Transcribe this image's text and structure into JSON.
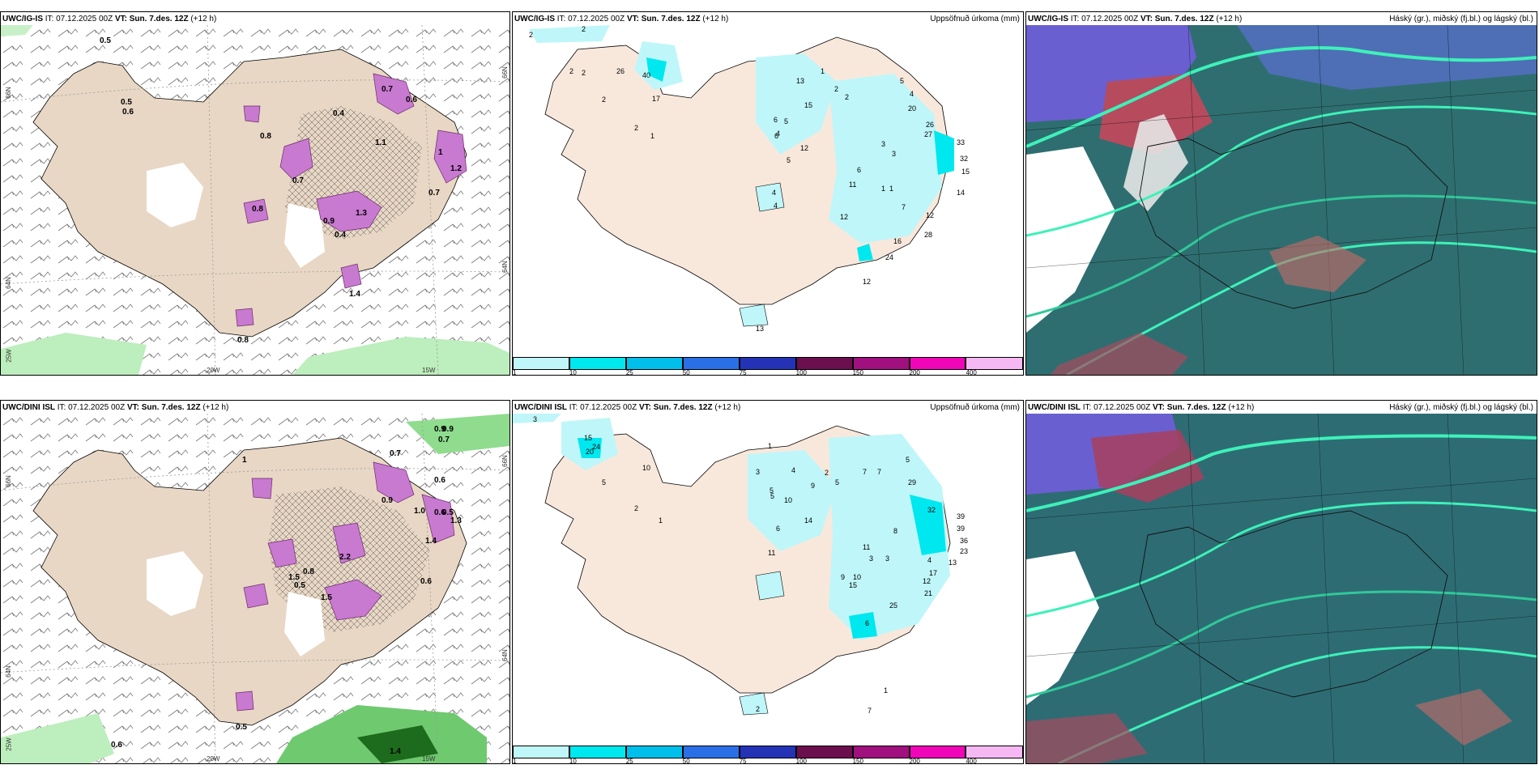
{
  "rows": [
    {
      "model": "UWC/IG-IS",
      "it_label": "IT:",
      "it_value": "07.12.2025 00Z",
      "vt_label": "VT:",
      "vt_value": "Sun. 7.des. 12Z",
      "lead": "(+12 h)",
      "panel1": {
        "lat_labels": [
          "66N",
          "64N",
          "25W"
        ],
        "lon_labels": [
          "20W",
          "15W"
        ],
        "right_lat_labels": [
          "66N",
          "64N"
        ],
        "values": [
          "0.5",
          "0.5",
          "0.6",
          "0.4",
          "0.7",
          "0.6",
          "1",
          "1.2",
          "0.8",
          "0.9",
          "1.3",
          "0.4",
          "0.8",
          "0.7",
          "1.1",
          "1.4",
          "0.7",
          "0.8"
        ]
      },
      "panel2": {
        "title_right": "Uppsöfnuð úrkoma (mm)",
        "values": [
          "2",
          "2",
          "2",
          "2",
          "2",
          "26",
          "40",
          "17",
          "2",
          "1",
          "13",
          "15",
          "1",
          "2",
          "2",
          "6",
          "5",
          "12",
          "6",
          "4",
          "5",
          "4",
          "4",
          "6",
          "11",
          "1",
          "1",
          "3",
          "3",
          "20",
          "26",
          "27",
          "33",
          "32",
          "15",
          "14",
          "7",
          "12",
          "12",
          "16",
          "28",
          "24",
          "5",
          "4",
          "12",
          "13"
        ]
      },
      "panel3": {
        "title_right": "Háský (gr.), miðský (fj.bl.) og lágský (bl.)"
      }
    },
    {
      "model": "UWC/DINI ISL",
      "it_label": "IT:",
      "it_value": "07.12.2025 00Z",
      "vt_label": "VT:",
      "vt_value": "Sun. 7.des. 12Z",
      "lead": "(+12 h)",
      "panel1": {
        "lat_labels": [
          "66N",
          "64N",
          "25W"
        ],
        "lon_labels": [
          "20W",
          "15W"
        ],
        "right_lat_labels": [
          "66N",
          "64N"
        ],
        "values": [
          "0.9",
          "0.9",
          "0.7",
          "0.7",
          "0.6",
          "0.6",
          "0.5",
          "1.3",
          "2.2",
          "1",
          "0.5",
          "0.8",
          "1.5",
          "1.0",
          "1.5",
          "0.6",
          "1.4",
          "0.9",
          "0.5",
          "0.6",
          "1.4"
        ]
      },
      "panel2": {
        "title_right": "Uppsöfnuð úrkoma (mm)",
        "values": [
          "3",
          "15",
          "20",
          "24",
          "5",
          "10",
          "2",
          "1",
          "1",
          "3",
          "4",
          "9",
          "2",
          "5",
          "5",
          "10",
          "14",
          "6",
          "5",
          "7",
          "7",
          "5",
          "29",
          "32",
          "39",
          "39",
          "36",
          "23",
          "13",
          "17",
          "12",
          "21",
          "11",
          "3",
          "3",
          "4",
          "8",
          "9",
          "10",
          "15",
          "25",
          "6",
          "11",
          "2",
          "1",
          "7"
        ]
      },
      "panel3": {
        "title_right": "Háský (gr.), miðský (fj.bl.) og lágský (bl.)"
      }
    }
  ],
  "colorbar": {
    "labels": [
      "1",
      "10",
      "25",
      "50",
      "75",
      "100",
      "150",
      "200",
      "400"
    ],
    "colors": [
      "#bff6f9",
      "#00e8ef",
      "#00bfea",
      "#2a6fe6",
      "#2433b5",
      "#6b0f4e",
      "#a0107f",
      "#f005b9",
      "#f6b8f2"
    ]
  }
}
